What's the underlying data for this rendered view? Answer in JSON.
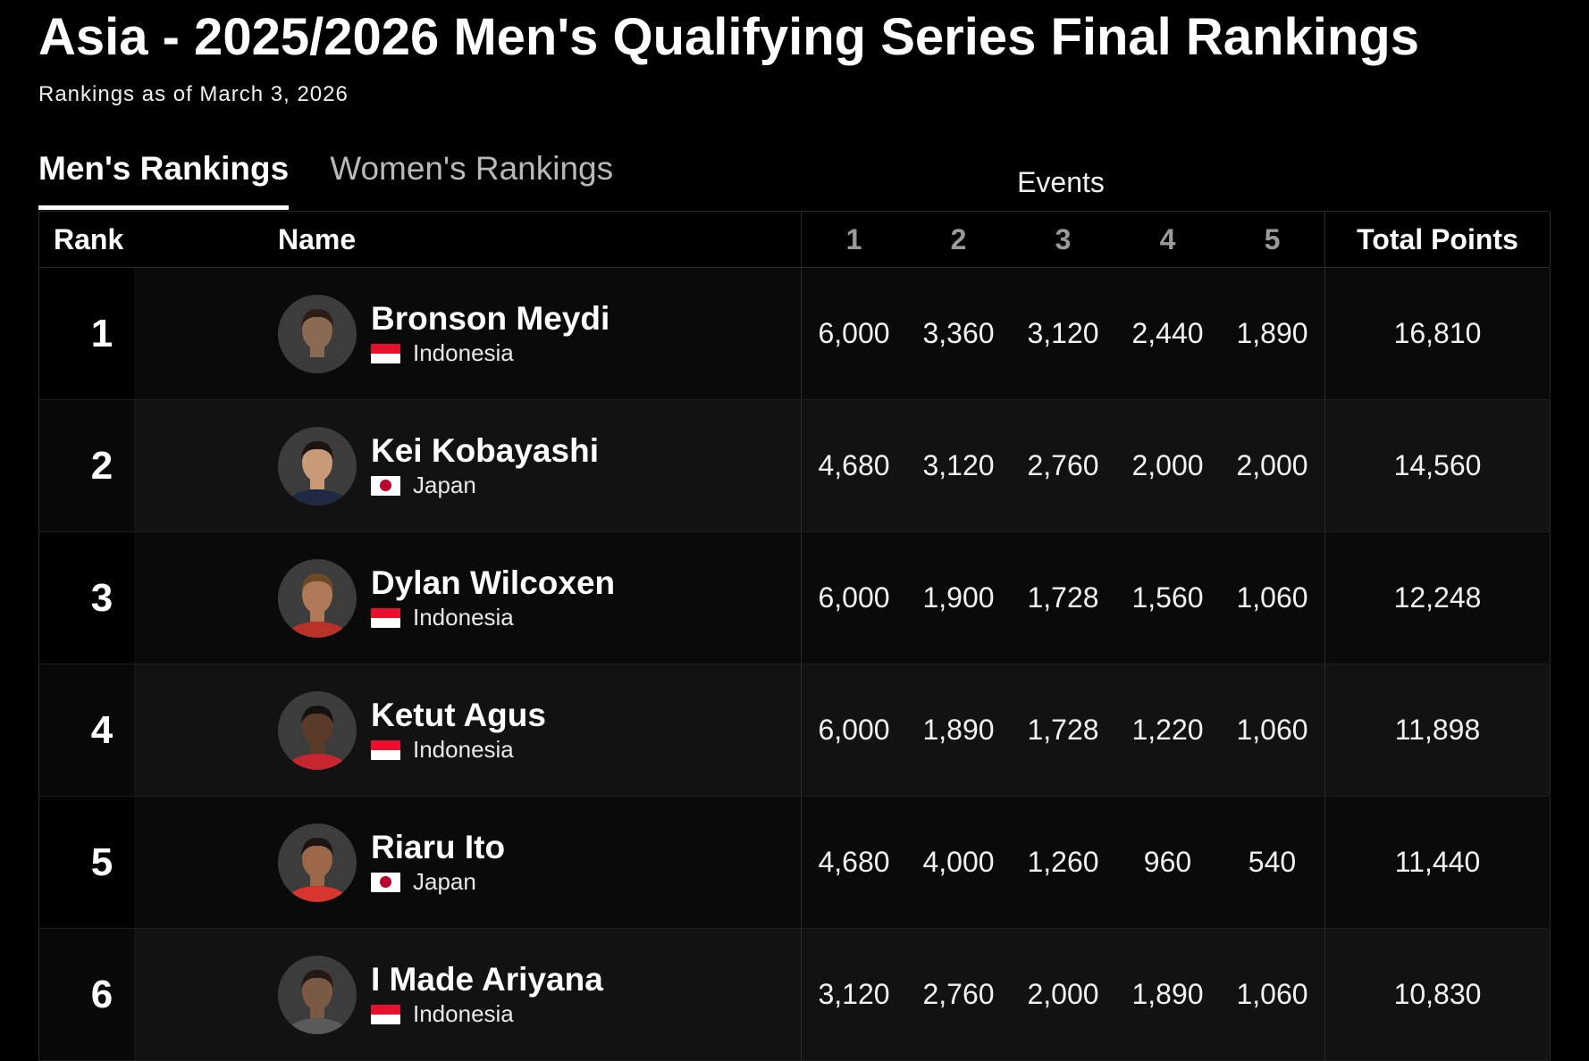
{
  "header": {
    "title": "Asia - 2025/2026 Men's Qualifying Series Final Rankings",
    "subtitle": "Rankings as of March 3, 2026"
  },
  "tabs": [
    {
      "label": "Men's Rankings",
      "active": true
    },
    {
      "label": "Women's Rankings",
      "active": false
    }
  ],
  "table": {
    "events_label": "Events",
    "columns": {
      "rank": "Rank",
      "name": "Name",
      "events": [
        "1",
        "2",
        "3",
        "4",
        "5"
      ],
      "total": "Total Points"
    },
    "rows": [
      {
        "rank": "1",
        "name": "Bronson Meydi",
        "country": "Indonesia",
        "flag": "indonesia-flag",
        "events": [
          "6,000",
          "3,360",
          "3,120",
          "2,440",
          "1,890"
        ],
        "total": "16,810"
      },
      {
        "rank": "2",
        "name": "Kei Kobayashi",
        "country": "Japan",
        "flag": "japan-flag",
        "events": [
          "4,680",
          "3,120",
          "2,760",
          "2,000",
          "2,000"
        ],
        "total": "14,560"
      },
      {
        "rank": "3",
        "name": "Dylan Wilcoxen",
        "country": "Indonesia",
        "flag": "indonesia-flag",
        "events": [
          "6,000",
          "1,900",
          "1,728",
          "1,560",
          "1,060"
        ],
        "total": "12,248"
      },
      {
        "rank": "4",
        "name": "Ketut Agus",
        "country": "Indonesia",
        "flag": "indonesia-flag",
        "events": [
          "6,000",
          "1,890",
          "1,728",
          "1,220",
          "1,060"
        ],
        "total": "11,898"
      },
      {
        "rank": "5",
        "name": "Riaru Ito",
        "country": "Japan",
        "flag": "japan-flag",
        "events": [
          "4,680",
          "4,000",
          "1,260",
          "960",
          "540"
        ],
        "total": "11,440"
      },
      {
        "rank": "6",
        "name": "I Made Ariyana",
        "country": "Indonesia",
        "flag": "indonesia-flag",
        "events": [
          "3,120",
          "2,760",
          "2,000",
          "1,890",
          "1,060"
        ],
        "total": "10,830"
      }
    ]
  },
  "colors": {
    "background": "#000000",
    "row_odd": "#0a0a0a",
    "row_even": "#121212",
    "indonesia_red": "#e8112d",
    "japan_red": "#bc002d"
  }
}
